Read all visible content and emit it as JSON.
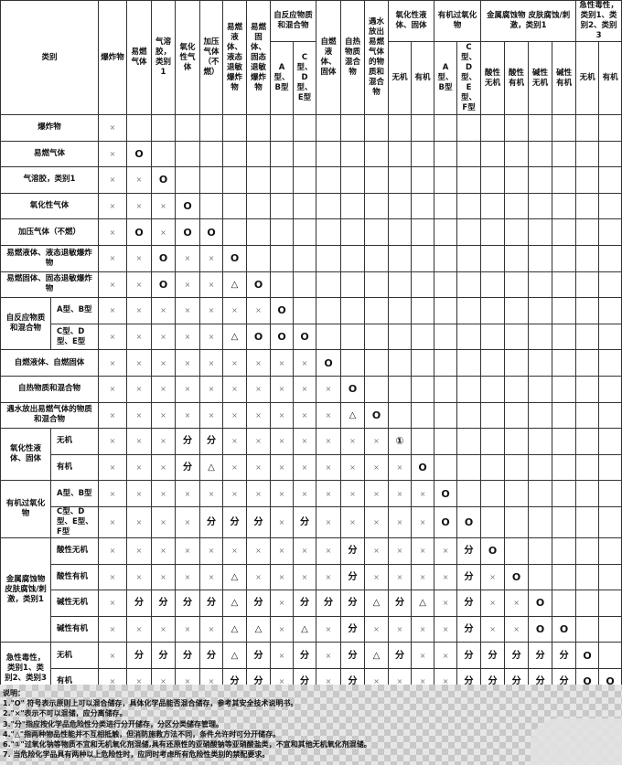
{
  "header": {
    "category": "类别",
    "columns": [
      {
        "label": "爆炸物"
      },
      {
        "label": "易燃气体"
      },
      {
        "label": "气溶胶，类别1"
      },
      {
        "label": "氧化性气体"
      },
      {
        "label": "加压气体（不燃）"
      },
      {
        "label": "易燃液体、液态退敏爆炸物"
      },
      {
        "label": "易燃固体、固态退敏爆炸物"
      },
      {
        "label": "自反应物质和混合物",
        "subs": [
          "A型、B型",
          "C型、D型、E型"
        ]
      },
      {
        "label": "自燃液体、固体"
      },
      {
        "label": "自热物质混合物"
      },
      {
        "label": "遇水放出易燃气体的物质和混合物"
      },
      {
        "label": "氧化性液体、固体",
        "subs": [
          "无机",
          "有机"
        ]
      },
      {
        "label": "有机过氧化物",
        "subs": [
          "A型、B型",
          "C型、D型、E型、F型"
        ]
      },
      {
        "label": "金属腐蚀物 皮肤腐蚀/刺激，类别1",
        "subs": [
          "酸性无机",
          "酸性有机",
          "碱性无机",
          "碱性有机"
        ]
      },
      {
        "label": "急性毒性，类别1、类别2、类别3",
        "subs": [
          "无机",
          "有机"
        ]
      }
    ]
  },
  "rows": [
    {
      "label": "爆炸物",
      "cells": [
        "×"
      ]
    },
    {
      "label": "易燃气体",
      "cells": [
        "×",
        "O"
      ]
    },
    {
      "label": "气溶胶，类别1",
      "cells": [
        "×",
        "×",
        "O"
      ]
    },
    {
      "label": "氧化性气体",
      "cells": [
        "×",
        "×",
        "×",
        "O"
      ]
    },
    {
      "label": "加压气体（不燃）",
      "cells": [
        "×",
        "O",
        "×",
        "O",
        "O"
      ]
    },
    {
      "label": "易燃液体、液态退敏爆炸物",
      "cells": [
        "×",
        "×",
        "O",
        "×",
        "×",
        "O"
      ]
    },
    {
      "label": "易燃固体、固态退敏爆炸物",
      "cells": [
        "×",
        "×",
        "O",
        "×",
        "×",
        "△",
        "O"
      ]
    },
    {
      "group": "自反应物质和混合物",
      "groupSpan": 2,
      "label": "A型、B型",
      "cells": [
        "×",
        "×",
        "×",
        "×",
        "×",
        "×",
        "×",
        "O"
      ]
    },
    {
      "label": "C型、D型、E型",
      "cells": [
        "×",
        "×",
        "×",
        "×",
        "×",
        "△",
        "O",
        "O",
        "O"
      ]
    },
    {
      "label": "自燃液体、自燃固体",
      "cells": [
        "×",
        "×",
        "×",
        "×",
        "×",
        "×",
        "×",
        "×",
        "×",
        "O"
      ]
    },
    {
      "label": "自热物质和混合物",
      "cells": [
        "×",
        "×",
        "×",
        "×",
        "×",
        "×",
        "×",
        "×",
        "×",
        "×",
        "O"
      ]
    },
    {
      "label": "遇水放出易燃气体的物质和混合物",
      "cells": [
        "×",
        "×",
        "×",
        "×",
        "×",
        "×",
        "×",
        "×",
        "×",
        "×",
        "△",
        "O"
      ]
    },
    {
      "group": "氧化性液体、固体",
      "groupSpan": 2,
      "label": "无机",
      "cells": [
        "×",
        "×",
        "×",
        "分",
        "分",
        "×",
        "×",
        "×",
        "×",
        "×",
        "×",
        "×",
        "①"
      ]
    },
    {
      "label": "有机",
      "cells": [
        "×",
        "×",
        "×",
        "分",
        "△",
        "×",
        "×",
        "×",
        "×",
        "×",
        "×",
        "×",
        "×",
        "O"
      ]
    },
    {
      "group": "有机过氧化物",
      "groupSpan": 2,
      "label": "A型、B型",
      "cells": [
        "×",
        "×",
        "×",
        "×",
        "×",
        "×",
        "×",
        "×",
        "×",
        "×",
        "×",
        "×",
        "×",
        "×",
        "O"
      ]
    },
    {
      "label": "C型、D型、E型、F型",
      "cells": [
        "×",
        "×",
        "×",
        "×",
        "分",
        "分",
        "分",
        "×",
        "分",
        "×",
        "×",
        "×",
        "×",
        "×",
        "O",
        "O"
      ]
    },
    {
      "group": "金属腐蚀物皮肤腐蚀/刺激，类别1",
      "groupSpan": 4,
      "label": "酸性无机",
      "cells": [
        "×",
        "×",
        "×",
        "×",
        "×",
        "×",
        "×",
        "×",
        "×",
        "×",
        "分",
        "×",
        "×",
        "×",
        "×",
        "分",
        "O"
      ]
    },
    {
      "label": "酸性有机",
      "cells": [
        "×",
        "×",
        "×",
        "×",
        "×",
        "△",
        "×",
        "×",
        "×",
        "×",
        "分",
        "×",
        "×",
        "×",
        "×",
        "分",
        "×",
        "O"
      ]
    },
    {
      "label": "碱性无机",
      "cells": [
        "×",
        "分",
        "分",
        "分",
        "分",
        "△",
        "分",
        "×",
        "分",
        "分",
        "分",
        "△",
        "分",
        "△",
        "×",
        "分",
        "×",
        "×",
        "O"
      ]
    },
    {
      "label": "碱性有机",
      "cells": [
        "×",
        "×",
        "×",
        "×",
        "×",
        "△",
        "△",
        "×",
        "△",
        "×",
        "分",
        "×",
        "×",
        "×",
        "×",
        "分",
        "×",
        "×",
        "O",
        "O"
      ]
    },
    {
      "group": "急性毒性，类别1、类别2、类别3",
      "groupSpan": 2,
      "label": "无机",
      "cells": [
        "×",
        "分",
        "分",
        "分",
        "分",
        "△",
        "分",
        "×",
        "分",
        "×",
        "分",
        "△",
        "分",
        "×",
        "×",
        "分",
        "分",
        "分",
        "分",
        "分",
        "O"
      ]
    },
    {
      "label": "有机",
      "cells": [
        "×",
        "×",
        "×",
        "×",
        "×",
        "分",
        "分",
        "×",
        "分",
        "×",
        "分",
        "×",
        "×",
        "×",
        "×",
        "分",
        "分",
        "分",
        "分",
        "分",
        "O",
        "O"
      ]
    }
  ],
  "notes": {
    "title": "说明：",
    "items": [
      "1.\"O\" 符号表示原则上可以混合储存，具体化学品能否混合储存，参考其安全技术说明书。",
      "2.\"×\"表示不可以混储，应分离储存。",
      "3.\"分\"指应按化学品危险性分类进行分开储存，分区分类储存管理。",
      "4.\"△\"指两种物品性能并不互相抵触，但消防施救方法不同，条件允许时可分开储存。",
      "6.\"①\"过氧化钠等物质不宜和无机氧化剂混储,具有还原性的亚硝酸钠等亚硝酸盐类，不宜和其他无机氧化剂混储。",
      "7. 当危险化学品具有两种以上危险性时，应同时考虑所有危险性类别的禁配要求。"
    ]
  }
}
